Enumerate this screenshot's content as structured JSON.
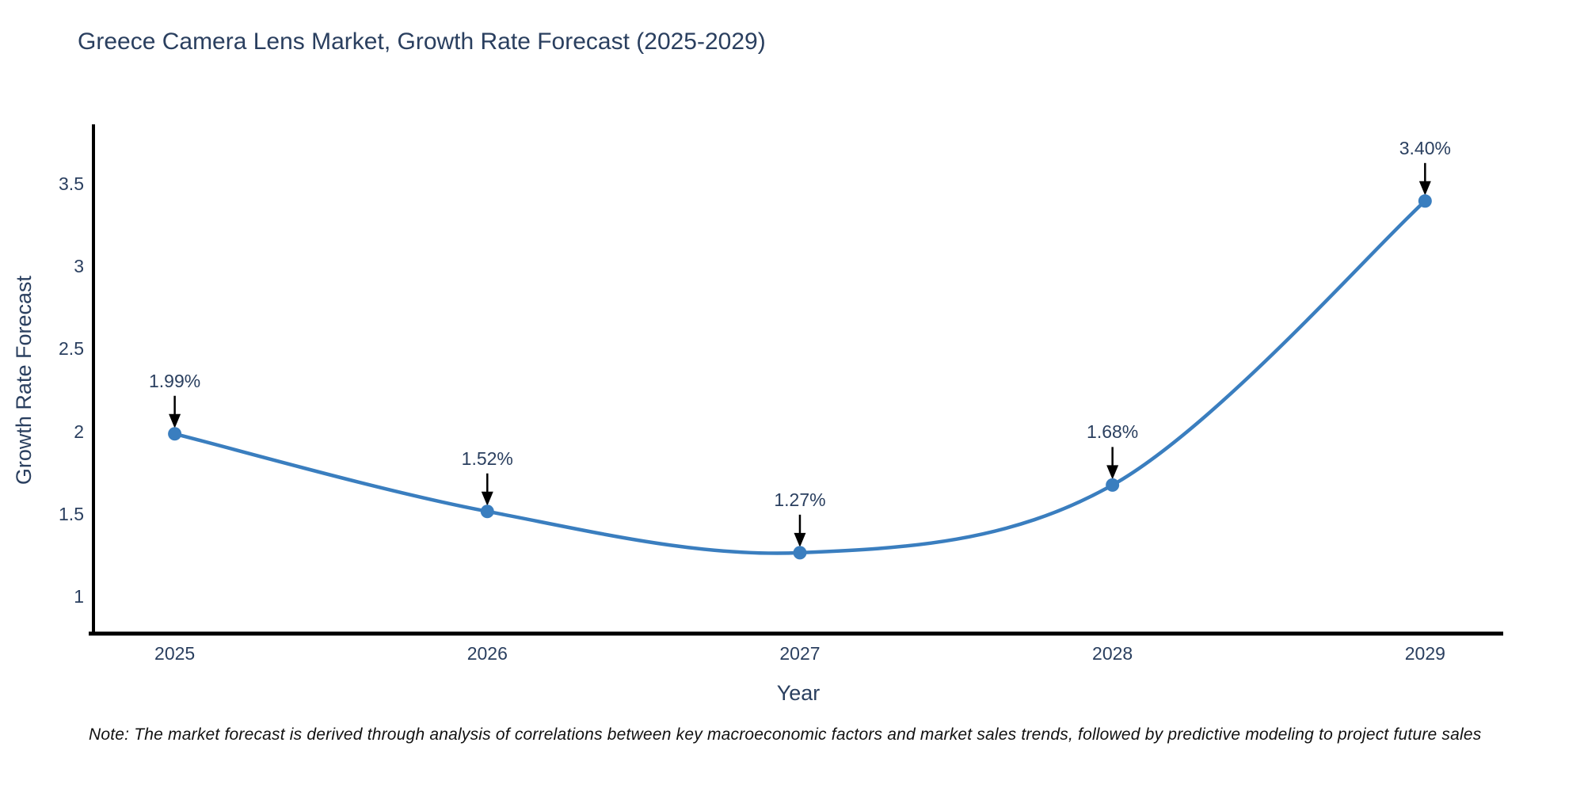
{
  "page": {
    "note": "Note: The market forecast is derived through analysis of correlations between key macroeconomic factors and market sales trends, followed by predictive modeling to project future sales"
  },
  "chart_data": {
    "type": "line",
    "title": "Greece Camera Lens Market, Growth Rate Forecast (2025-2029)",
    "xlabel": "Year",
    "ylabel": "Growth Rate Forecast",
    "categories": [
      "2025",
      "2026",
      "2027",
      "2028",
      "2029"
    ],
    "x": [
      2025,
      2026,
      2027,
      2028,
      2029
    ],
    "values": [
      1.99,
      1.52,
      1.27,
      1.68,
      3.4
    ],
    "point_labels": [
      "1.99%",
      "1.52%",
      "1.27%",
      "1.68%",
      "3.40%"
    ],
    "line_shape": "spline",
    "markers": true,
    "grid": false,
    "legend": "none",
    "xlim": [
      2024.74,
      2029.25
    ],
    "ylim": [
      0.78,
      3.85
    ],
    "yticks": [
      1,
      1.5,
      2,
      2.5,
      3,
      3.5
    ],
    "ytick_labels": [
      "1",
      "1.5",
      "2",
      "2.5",
      "3",
      "3.5"
    ],
    "colors": {
      "line": "#3a7ebf",
      "marker": "#3a7ebf",
      "arrow": "#000000",
      "axis": "#000000",
      "text": "#2a3f5f",
      "note_text": "#111111",
      "background": "#ffffff"
    }
  }
}
